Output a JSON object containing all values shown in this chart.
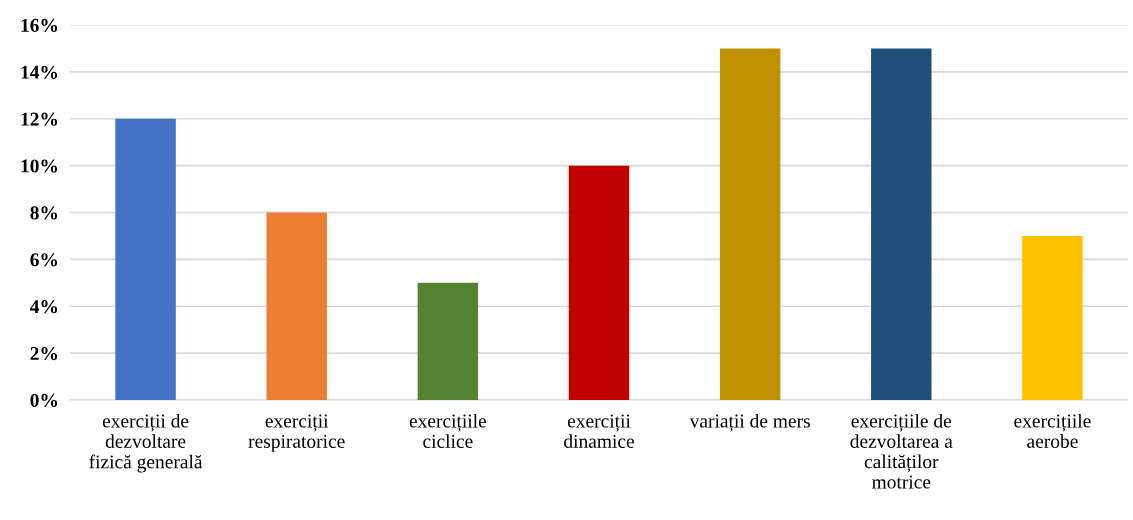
{
  "chart_data": {
    "type": "bar",
    "categories": [
      "exerciții de\ndezvoltare\nfizică generală",
      "exerciții\nrespiratorice",
      "exercițiile\nciclice",
      "exerciții\ndinamice",
      "variații de mers",
      "exercițiile de\ndezvoltarea a\ncalităților\nmotrice",
      "exercițiile\naerobe"
    ],
    "values": [
      12,
      8,
      5,
      10,
      15,
      15,
      7
    ],
    "colors": [
      "#4472c4",
      "#ed7d31",
      "#548235",
      "#c00000",
      "#bf9000",
      "#1f4e79",
      "#ffc000"
    ],
    "ylim": [
      0,
      16
    ],
    "yticks": [
      {
        "value": 0,
        "label": "0%"
      },
      {
        "value": 2,
        "label": "2%"
      },
      {
        "value": 4,
        "label": "4%"
      },
      {
        "value": 6,
        "label": "6%"
      },
      {
        "value": 8,
        "label": "8%"
      },
      {
        "value": 10,
        "label": "10%"
      },
      {
        "value": 12,
        "label": "12%"
      },
      {
        "value": 14,
        "label": "14%"
      },
      {
        "value": 16,
        "label": "16%"
      }
    ],
    "grid": "y"
  }
}
